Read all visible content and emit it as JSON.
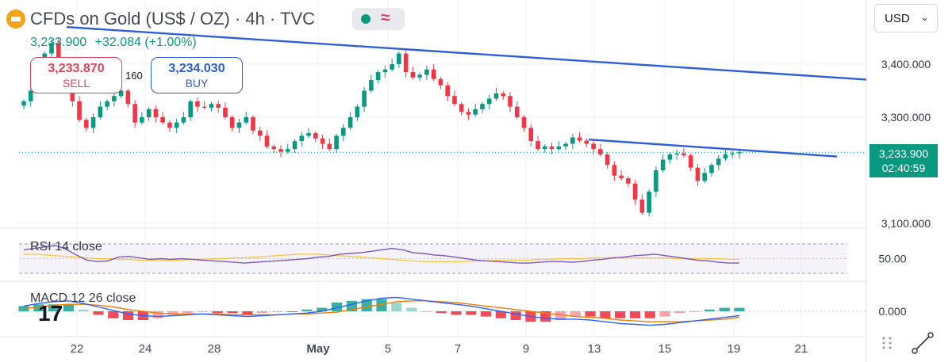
{
  "header": {
    "title": "CFDs on Gold (US$ / OZ) · 4h · TVC",
    "price": "3,233.900",
    "change": "+32.084 (+1.00%)"
  },
  "trade": {
    "sell_price": "3,233.870",
    "sell_label": "SELL",
    "spread": "160",
    "buy_price": "3,234.030",
    "buy_label": "BUY"
  },
  "currency": "USD",
  "last_price": {
    "price": "3,233.900",
    "countdown": "02:40:59"
  },
  "indicators": {
    "rsi_label": "RSI 14 close",
    "macd_label": "MACD 12 26 close"
  },
  "branding": {
    "watermark": "17"
  },
  "colors": {
    "up": "#089981",
    "down": "#f23645",
    "trendline": "#2f5fd8",
    "rsi": "#7e57c2",
    "rsi_ma": "#f7c948",
    "macd": "#2962ff",
    "signal": "#f57c00"
  },
  "chart_data": [
    {
      "type": "candlestick",
      "title": "CFDs on Gold (US$ / OZ) · 4h · TVC",
      "x_ticks": [
        "22",
        "24",
        "28",
        "May",
        "5",
        "7",
        "9",
        "13",
        "15",
        "19",
        "21"
      ],
      "y_ticks": [
        "3,400.000",
        "3,300.000",
        "3,100.000"
      ],
      "ylim": [
        3100,
        3470
      ],
      "last_price": 3233.9,
      "closes": [
        3330,
        3350,
        3380,
        3420,
        3440,
        3410,
        3360,
        3330,
        3295,
        3280,
        3300,
        3320,
        3330,
        3340,
        3350,
        3325,
        3290,
        3300,
        3315,
        3300,
        3290,
        3280,
        3290,
        3300,
        3330,
        3320,
        3318,
        3325,
        3318,
        3300,
        3280,
        3290,
        3300,
        3275,
        3265,
        3245,
        3240,
        3235,
        3240,
        3255,
        3265,
        3270,
        3260,
        3250,
        3240,
        3265,
        3280,
        3300,
        3320,
        3350,
        3370,
        3385,
        3390,
        3400,
        3420,
        3385,
        3375,
        3380,
        3390,
        3372,
        3360,
        3340,
        3325,
        3310,
        3305,
        3315,
        3325,
        3335,
        3345,
        3340,
        3320,
        3300,
        3280,
        3255,
        3240,
        3245,
        3240,
        3245,
        3250,
        3262,
        3256,
        3250,
        3240,
        3230,
        3210,
        3190,
        3185,
        3175,
        3145,
        3120,
        3160,
        3200,
        3220,
        3230,
        3232,
        3228,
        3205,
        3180,
        3195,
        3210,
        3222,
        3230,
        3232,
        3234
      ],
      "trendlines": [
        {
          "from": "upper-left",
          "to": "right-edge",
          "from_price": 3470,
          "to_price": 3371
        },
        {
          "from": "May 13",
          "to": "May 21",
          "from_price": 3258,
          "to_price": 3226
        }
      ]
    },
    {
      "type": "line",
      "title": "RSI 14 close",
      "y_ticks": [
        "50.00"
      ],
      "series": [
        {
          "values": [
            62,
            64,
            66,
            68,
            63,
            55,
            48,
            46,
            47,
            52,
            53,
            51,
            49,
            50,
            49,
            50,
            49,
            48,
            47,
            46,
            45,
            44,
            45,
            46,
            47,
            48,
            49,
            50,
            52,
            53,
            56,
            57,
            58,
            60,
            62,
            64,
            62,
            58,
            57,
            55,
            54,
            52,
            50,
            48,
            47,
            46,
            45,
            44,
            44,
            45,
            46,
            46,
            45,
            46,
            48,
            49,
            51,
            52,
            54,
            55,
            56,
            54,
            52,
            50,
            48,
            47,
            45,
            44,
            44
          ]
        },
        {
          "values": [
            56,
            56,
            55,
            54,
            53,
            52,
            51,
            50,
            50,
            49,
            49,
            48,
            48,
            48,
            48,
            48,
            49,
            49,
            50,
            50,
            51,
            51,
            52,
            53,
            54,
            55,
            56,
            56,
            56,
            55,
            54,
            53,
            52,
            51,
            50,
            49,
            48,
            47,
            46,
            46,
            46,
            46,
            46,
            47,
            47,
            48,
            48,
            48,
            48,
            49,
            49,
            50,
            50,
            50,
            51,
            51,
            51,
            51,
            51,
            51,
            51,
            51,
            50,
            50,
            50,
            50,
            50,
            49,
            49
          ]
        }
      ]
    },
    {
      "type": "line",
      "title": "MACD 12 26 close",
      "y_ticks": [
        "0.000"
      ],
      "series": [
        {
          "values": [
            6,
            9,
            11,
            12,
            9,
            5,
            1,
            -3,
            -5,
            -6,
            -5,
            -4,
            -3,
            -4,
            -5,
            -6,
            -5,
            -4,
            -3,
            -2,
            0,
            4,
            8,
            12,
            15,
            16,
            14,
            12,
            10,
            8,
            6,
            3,
            0,
            -3,
            -6,
            -8,
            -9,
            -9,
            -10,
            -12,
            -14,
            -15,
            -16,
            -15,
            -13,
            -11,
            -9,
            -7,
            -5
          ]
        },
        {
          "values": [
            3,
            5,
            7,
            8,
            8,
            7,
            5,
            2,
            0,
            -2,
            -3,
            -3,
            -3,
            -3,
            -4,
            -4,
            -4,
            -4,
            -3,
            -3,
            -2,
            -1,
            2,
            5,
            8,
            11,
            12,
            12,
            11,
            10,
            8,
            6,
            4,
            2,
            0,
            -2,
            -4,
            -6,
            -7,
            -8,
            -10,
            -11,
            -12,
            -12,
            -12,
            -11,
            -10,
            -9,
            -7
          ]
        }
      ]
    }
  ]
}
